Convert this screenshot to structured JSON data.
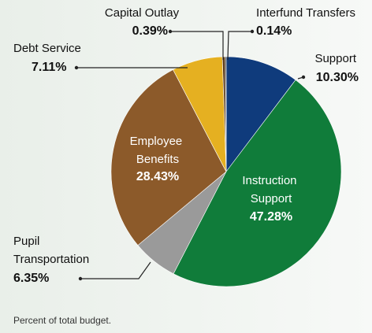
{
  "chart_data": {
    "type": "pie",
    "categories": [
      "Support",
      "Instruction Support",
      "Pupil Transportation",
      "Employee Benefits",
      "Debt Service",
      "Capital Outlay",
      "Interfund Transfers"
    ],
    "values": [
      10.3,
      47.28,
      6.35,
      28.43,
      7.11,
      0.39,
      0.14
    ],
    "value_labels": [
      "10.30%",
      "47.28%",
      "6.35%",
      "28.43%",
      "7.11%",
      "0.39%",
      "0.14%"
    ],
    "colors": [
      "#0f3b7c",
      "#107c3a",
      "#9a9a9a",
      "#8c5a2a",
      "#e5b021",
      "#5a3a1a",
      "#1a1a1a"
    ],
    "footnote": "Percent of total budget."
  }
}
